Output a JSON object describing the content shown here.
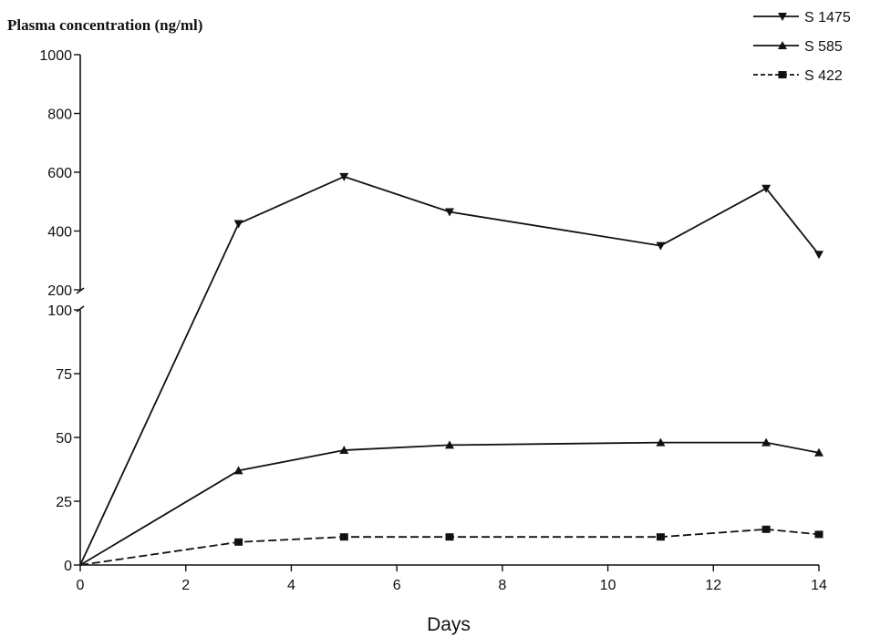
{
  "chart_data": {
    "type": "line",
    "ylabel": "Plasma concentration (ng/ml)",
    "xlabel": "Days",
    "xlim": [
      0,
      14
    ],
    "x_ticks": [
      0,
      2,
      4,
      6,
      8,
      10,
      12,
      14
    ],
    "y_axis_broken": true,
    "y_upper_segment": {
      "range": [
        200,
        1000
      ],
      "ticks": [
        200,
        400,
        600,
        800,
        1000
      ]
    },
    "y_lower_segment": {
      "range": [
        0,
        100
      ],
      "ticks": [
        0,
        25,
        50,
        75,
        100
      ]
    },
    "legend_position": "top-right",
    "grid": false,
    "series": [
      {
        "name": "S 1475",
        "marker": "triangle-down",
        "line_style": "solid",
        "points": [
          [
            0,
            0
          ],
          [
            3,
            425
          ],
          [
            5,
            585
          ],
          [
            7,
            465
          ],
          [
            11,
            350
          ],
          [
            13,
            545
          ],
          [
            14,
            320
          ]
        ]
      },
      {
        "name": "S 585",
        "marker": "triangle-up",
        "line_style": "solid",
        "points": [
          [
            0,
            0
          ],
          [
            3,
            37
          ],
          [
            5,
            45
          ],
          [
            7,
            47
          ],
          [
            11,
            48
          ],
          [
            13,
            48
          ],
          [
            14,
            44
          ]
        ]
      },
      {
        "name": "S 422",
        "marker": "square",
        "line_style": "dashed",
        "points": [
          [
            0,
            0
          ],
          [
            3,
            9
          ],
          [
            5,
            11
          ],
          [
            7,
            11
          ],
          [
            11,
            11
          ],
          [
            13,
            14
          ],
          [
            14,
            12
          ]
        ]
      }
    ]
  }
}
